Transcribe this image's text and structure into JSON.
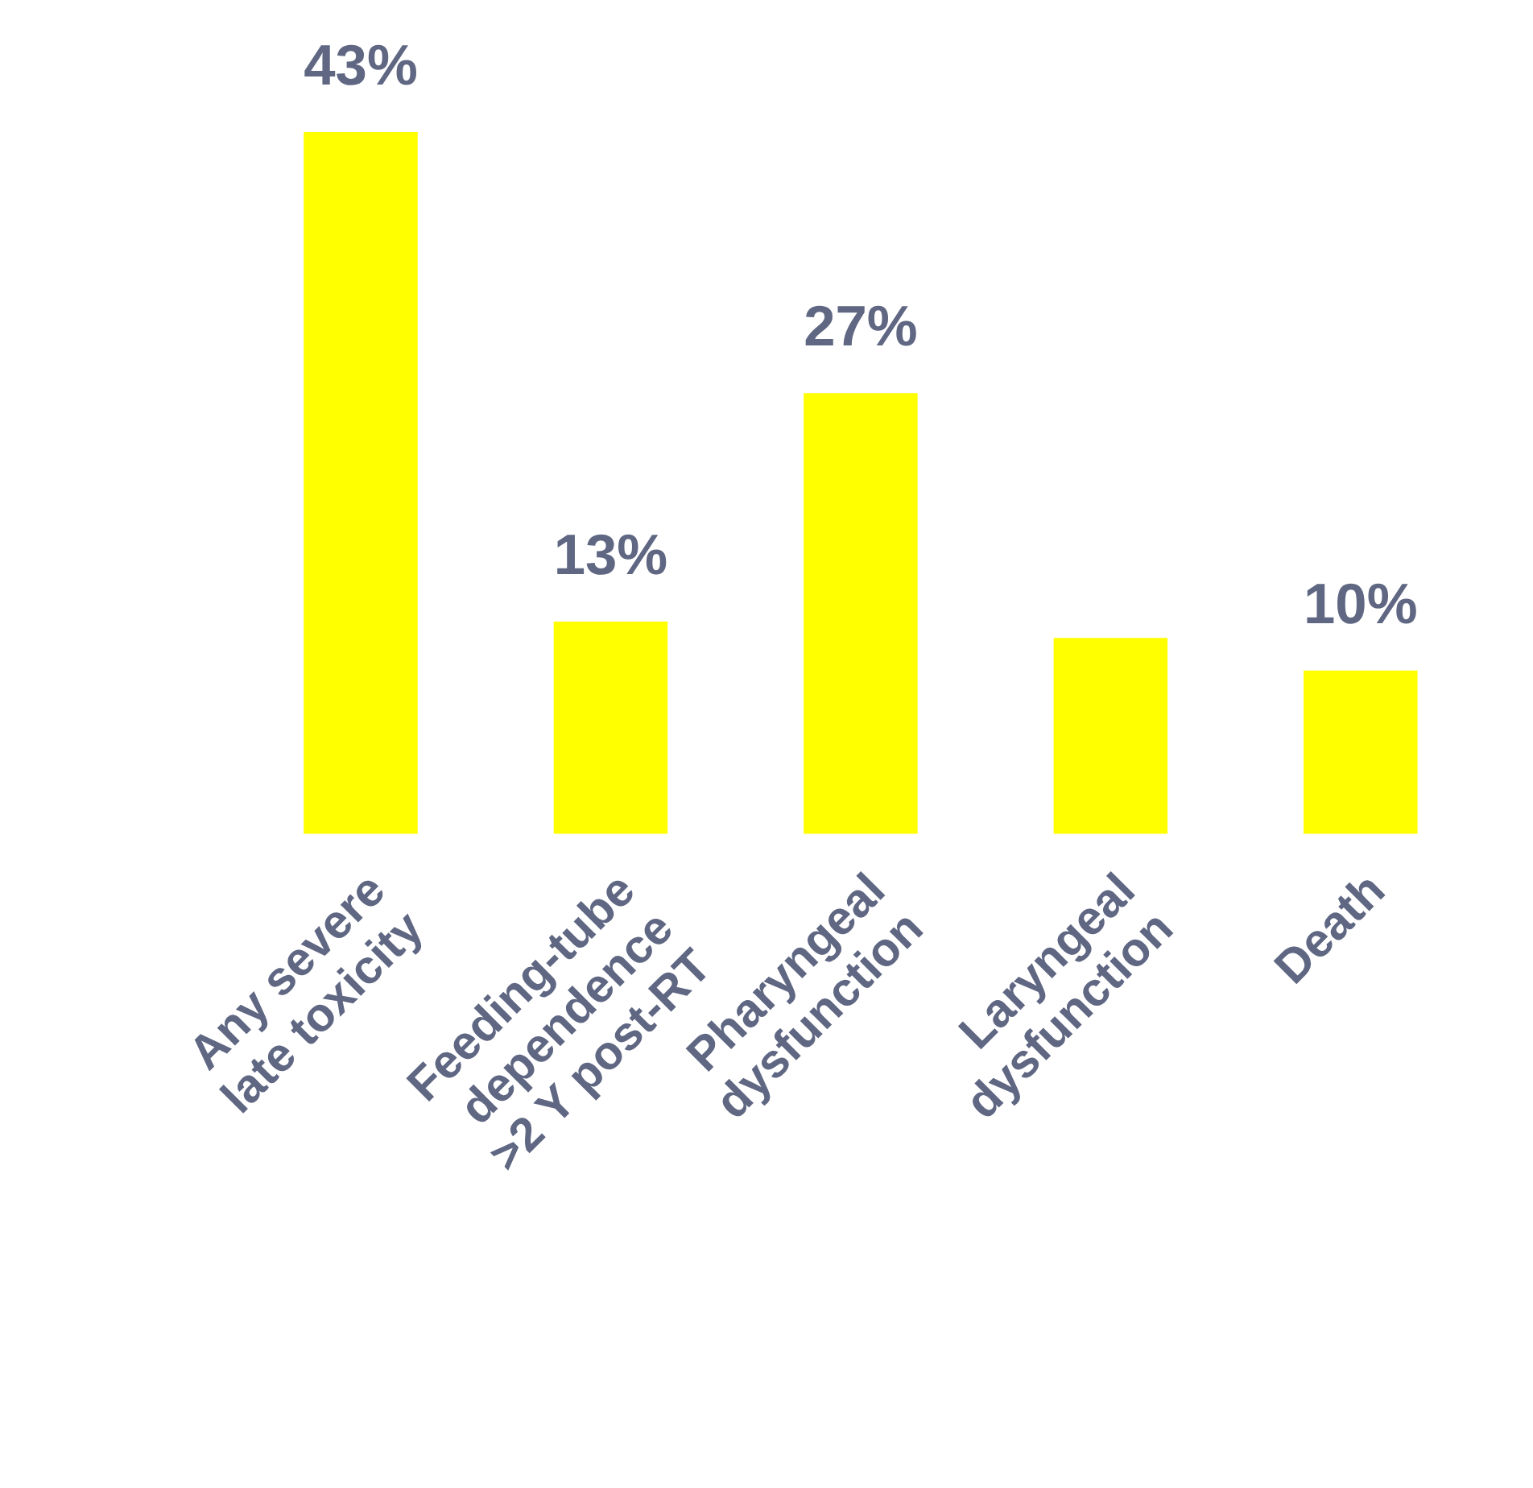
{
  "chart_data": {
    "type": "bar",
    "categories": [
      "Any severe\nlate toxicity",
      "Feeding-tube\ndependence\n>2 Y post-RT",
      "Pharyngeal\ndysfunction",
      "Laryngeal\ndysfunction",
      "Death"
    ],
    "values": [
      43,
      13,
      27,
      12,
      10
    ],
    "value_labels": [
      "43%",
      "13%",
      "27%",
      null,
      "10%"
    ],
    "color": "#ffff00"
  }
}
